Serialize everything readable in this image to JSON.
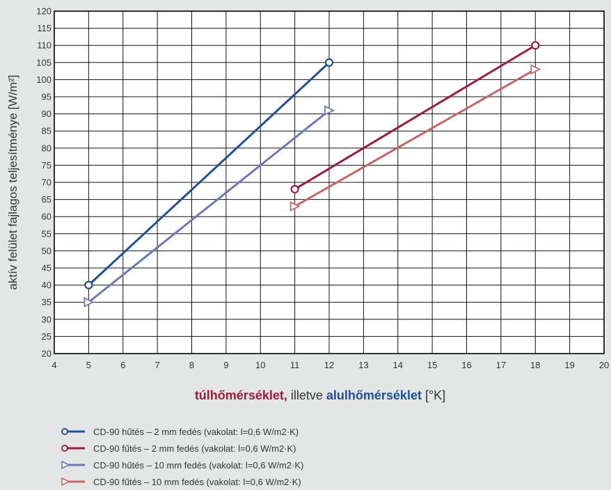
{
  "chart_data": {
    "type": "line",
    "title": "",
    "xlabel_parts": [
      {
        "text": "túlhőmérséklet,",
        "color": "#9c1a3a",
        "bold": true
      },
      {
        "text": " illetve ",
        "color": "#333333",
        "bold": false
      },
      {
        "text": "alulhőmérséklet",
        "color": "#1f4e9a",
        "bold": true
      },
      {
        "text": " [°K]",
        "color": "#333333",
        "bold": false
      }
    ],
    "ylabel": "aktív felület fajlagos teljesítménye [W/m²]",
    "xlim": [
      4,
      20
    ],
    "ylim": [
      20,
      120
    ],
    "xticks": [
      "4",
      "5",
      "6",
      "7",
      "8",
      "9",
      "10",
      "11",
      "12",
      "13",
      "14",
      "15",
      "16",
      "17",
      "18",
      "19",
      "20"
    ],
    "yticks": [
      "20",
      "25",
      "30",
      "35",
      "40",
      "45",
      "50",
      "55",
      "60",
      "65",
      "70",
      "75",
      "80",
      "85",
      "90",
      "95",
      "100",
      "105",
      "110",
      "115",
      "120"
    ],
    "grid": true,
    "legend_position": "bottom",
    "series": [
      {
        "name": "CD-90 hűtés – 2 mm fedés (vakolat: l=0,6 W/m2·K)",
        "color": "#1f4e9a",
        "marker": "circle",
        "x": [
          5,
          12
        ],
        "y": [
          40,
          105
        ]
      },
      {
        "name": "CD-90 fűtés – 2 mm fedés (vakolat: l=0,6 W/m2·K)",
        "color": "#9c1a3a",
        "marker": "circle",
        "x": [
          11,
          18
        ],
        "y": [
          68,
          110
        ]
      },
      {
        "name": "CD-90 hűtés – 10 mm fedés (vakolat: l=0,6 W/m2·K)",
        "color": "#6b76b8",
        "marker": "triangle",
        "x": [
          5,
          12
        ],
        "y": [
          35,
          91
        ]
      },
      {
        "name": "CD-90 fűtés – 10 mm fedés (vakolat: l=0,6 W/m2·K)",
        "color": "#c46466",
        "marker": "triangle",
        "x": [
          11,
          18
        ],
        "y": [
          63,
          103
        ]
      }
    ]
  }
}
